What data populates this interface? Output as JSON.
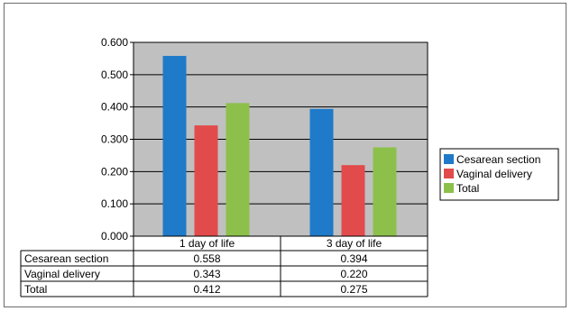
{
  "chart_data": {
    "type": "bar",
    "categories": [
      "1 day of life",
      "3 day of life"
    ],
    "series": [
      {
        "name": "Cesarean section",
        "values": [
          0.558,
          0.394
        ],
        "color": "#1f7ac9"
      },
      {
        "name": "Vaginal delivery",
        "values": [
          0.343,
          0.22
        ],
        "color": "#e24b4b"
      },
      {
        "name": "Total",
        "values": [
          0.412,
          0.275
        ],
        "color": "#8cc04b"
      }
    ],
    "ylim": [
      0,
      0.6
    ],
    "yticks": [
      "0.000",
      "0.100",
      "0.200",
      "0.300",
      "0.400",
      "0.500",
      "0.600"
    ],
    "table": {
      "rows": [
        {
          "label": "Cesarean section",
          "values": [
            "0.558",
            "0.394"
          ]
        },
        {
          "label": "Vaginal delivery",
          "values": [
            "0.343",
            "0.220"
          ]
        },
        {
          "label": "Total",
          "values": [
            "0.412",
            "0.275"
          ]
        }
      ]
    },
    "plot_background": "#c0c0c0",
    "grid": true,
    "legend_position": "right"
  }
}
